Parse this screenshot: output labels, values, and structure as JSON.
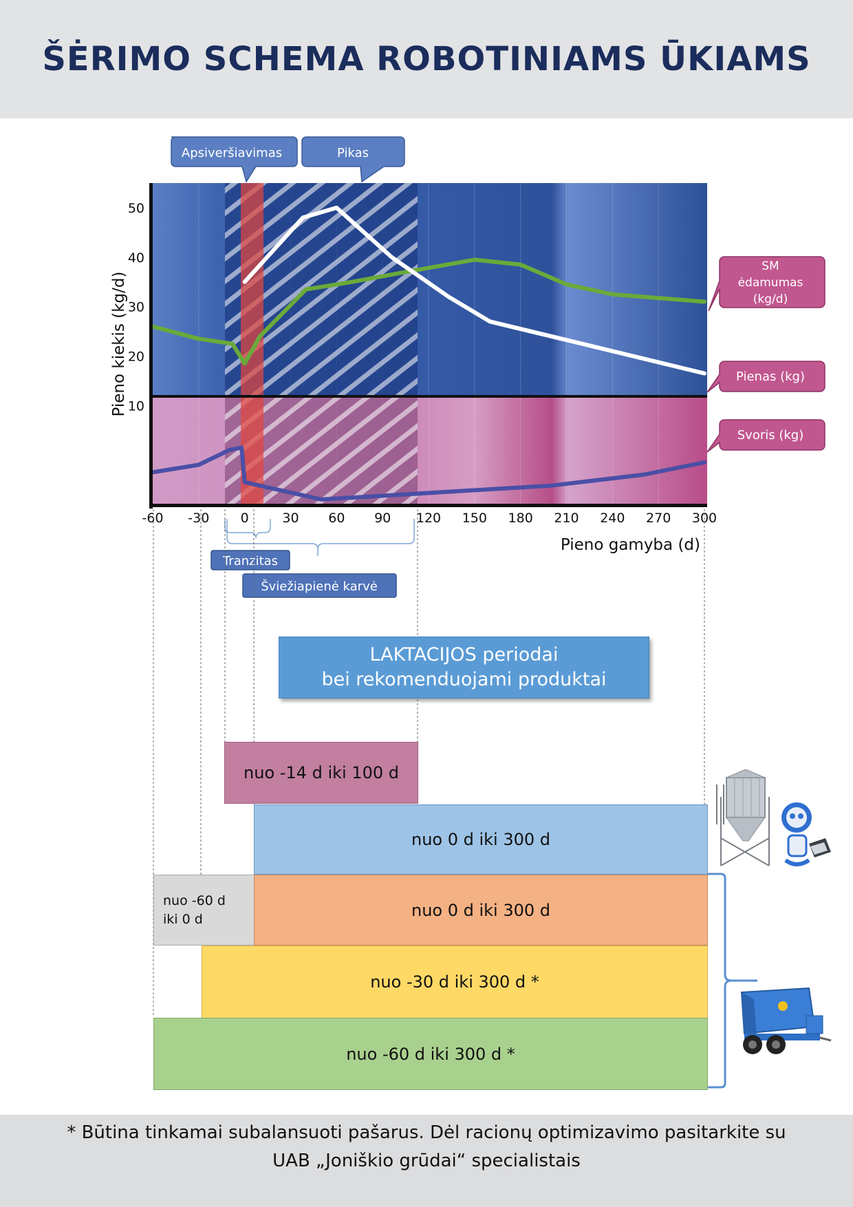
{
  "title": "ŠĖRIMO SCHEMA ROBOTINIAMS ŪKIAMS",
  "chart_data": {
    "type": "line",
    "ylabel": "Pieno kiekis (kg/d)",
    "xlabel": "Pieno gamyba (d)",
    "x_ticks": [
      -60,
      -30,
      0,
      30,
      60,
      90,
      120,
      150,
      180,
      210,
      240,
      270,
      300
    ],
    "y_ticks": [
      10,
      20,
      30,
      40,
      50
    ],
    "xlim": [
      -60,
      300
    ],
    "ylim": [
      -10,
      55
    ],
    "series": [
      {
        "name": "SM ėdamumas (kg/d)",
        "color": "#6aaa3a",
        "x": [
          -60,
          -30,
          -8,
          0,
          10,
          40,
          70,
          105,
          150,
          180,
          210,
          240,
          300
        ],
        "y": [
          26,
          23.5,
          22.5,
          18.5,
          24,
          33.5,
          35,
          37,
          39.5,
          38.5,
          34.5,
          32.5,
          31
        ]
      },
      {
        "name": "Pienas (kg)",
        "color": "#ffffff",
        "x": [
          0,
          38,
          60,
          96,
          133,
          160,
          200,
          300
        ],
        "y": [
          35,
          48,
          50,
          40,
          32,
          27,
          24,
          16.5
        ]
      },
      {
        "name": "Svoris (kg)",
        "color": "#4a4fa6",
        "x": [
          -60,
          -30,
          -10,
          -2,
          0,
          50,
          130,
          200,
          260,
          300
        ],
        "y": [
          -3.5,
          -2,
          1,
          1.5,
          -5.5,
          -9,
          -7.5,
          -6.2,
          -4,
          -1.5
        ]
      }
    ],
    "phases": [
      {
        "label": "Apsiveršiavimas",
        "from": -14,
        "to": 14
      },
      {
        "label": "Pikas",
        "from": 14,
        "to": 100
      }
    ],
    "ranges": [
      {
        "label": "Tranzitas"
      },
      {
        "label": "Šviežiapienė karvė"
      }
    ]
  },
  "laktacijos": {
    "line1": "LAKTACIJOS periodai",
    "line2": "bei rekomenduojami produktai"
  },
  "periods": [
    {
      "label": "nuo -14 d iki 100 d",
      "color": "#c27fa0"
    },
    {
      "label": "nuo 0 d iki 300 d",
      "color": "#9dc3e6"
    },
    {
      "label": "nuo -60 d\niki 0 d",
      "color": "#d9d9d9"
    },
    {
      "label": "nuo 0 d iki 300 d",
      "color": "#f4b183"
    },
    {
      "label": "nuo -30 d iki 300 d *",
      "color": "#ffd966"
    },
    {
      "label": "nuo -60 d iki 300 d *",
      "color": "#a9d18e"
    }
  ],
  "footer": {
    "line1": "* Būtina tinkamai subalansuoti pašarus. Dėl racionų optimizavimo pasitarkite su",
    "line2": "UAB „Joniškio grūdai“ specialistais"
  }
}
